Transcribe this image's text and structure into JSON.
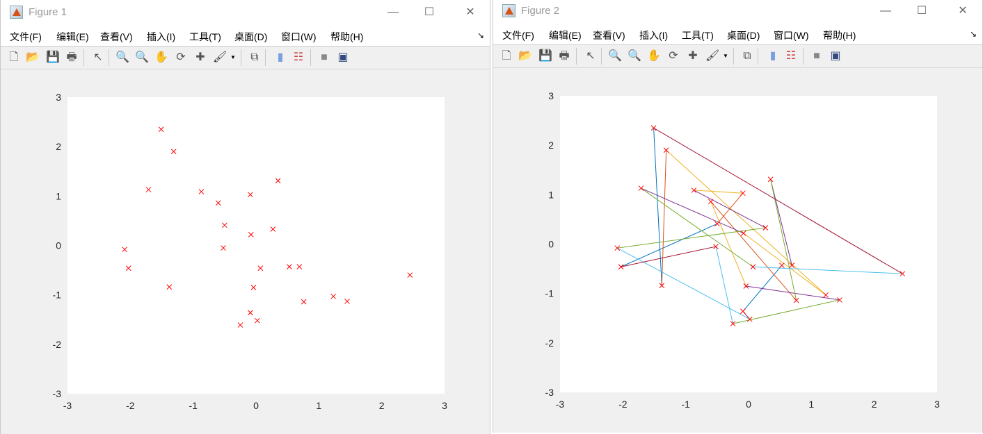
{
  "windows": [
    {
      "title": "Figure 1",
      "menu": [
        "文件(F)",
        "编辑(E)",
        "查看(V)",
        "插入(I)",
        "工具(T)",
        "桌面(D)",
        "窗口(W)",
        "帮助(H)"
      ],
      "toolbar": [
        "new-figure",
        "open-file",
        "save",
        "print",
        "edit-plot-pointer",
        "zoom-in",
        "zoom-out",
        "pan",
        "rotate-3d",
        "data-cursor",
        "brush",
        "link-plot",
        "colorbar",
        "legend",
        "hide-plot-tools",
        "show-plot-tools"
      ],
      "window_controls": {
        "minimize": "—",
        "maximize": "☐",
        "close": "✕"
      }
    },
    {
      "title": "Figure 2",
      "menu": [
        "文件(F)",
        "编辑(E)",
        "查看(V)",
        "插入(I)",
        "工具(T)",
        "桌面(D)",
        "窗口(W)",
        "帮助(H)"
      ],
      "toolbar": [
        "new-figure",
        "open-file",
        "save",
        "print",
        "edit-plot-pointer",
        "zoom-in",
        "zoom-out",
        "pan",
        "rotate-3d",
        "data-cursor",
        "brush",
        "link-plot",
        "colorbar",
        "legend",
        "hide-plot-tools",
        "show-plot-tools"
      ],
      "window_controls": {
        "minimize": "—",
        "maximize": "☐",
        "close": "✕"
      }
    }
  ],
  "chart_data": [
    {
      "type": "scatter",
      "xlim": [
        -3,
        3
      ],
      "ylim": [
        -3,
        3
      ],
      "xticks": [
        "-3",
        "-2",
        "-1",
        "0",
        "1",
        "2",
        "3"
      ],
      "yticks": [
        "-3",
        "-2",
        "-1",
        "0",
        "1",
        "2",
        "3"
      ],
      "grid": false,
      "marker": "x",
      "marker_color": "#ff0000",
      "points": [
        [
          -1.51,
          2.35
        ],
        [
          -1.31,
          1.9
        ],
        [
          -1.71,
          1.13
        ],
        [
          -0.87,
          1.09
        ],
        [
          -0.6,
          0.86
        ],
        [
          -0.09,
          1.03
        ],
        [
          0.35,
          1.31
        ],
        [
          -0.5,
          0.41
        ],
        [
          0.27,
          0.33
        ],
        [
          -0.08,
          0.22
        ],
        [
          -0.52,
          -0.05
        ],
        [
          -2.09,
          -0.08
        ],
        [
          -2.03,
          -0.46
        ],
        [
          -1.38,
          -0.84
        ],
        [
          0.07,
          -0.46
        ],
        [
          0.53,
          -0.43
        ],
        [
          0.69,
          -0.43
        ],
        [
          -0.04,
          -0.85
        ],
        [
          0.76,
          -1.14
        ],
        [
          1.23,
          -1.03
        ],
        [
          1.45,
          -1.13
        ],
        [
          2.45,
          -0.6
        ],
        [
          -0.09,
          -1.36
        ],
        [
          0.02,
          -1.52
        ],
        [
          -0.25,
          -1.61
        ]
      ]
    },
    {
      "type": "line",
      "xlim": [
        -3,
        3
      ],
      "ylim": [
        -3,
        3
      ],
      "xticks": [
        "-3",
        "-2",
        "-1",
        "0",
        "1",
        "2",
        "3"
      ],
      "yticks": [
        "-3",
        "-2",
        "-1",
        "0",
        "1",
        "2",
        "3"
      ],
      "grid": false,
      "marker": "x",
      "marker_color": "#ff0000",
      "points": [
        [
          -1.51,
          2.35
        ],
        [
          -1.31,
          1.9
        ],
        [
          -1.71,
          1.13
        ],
        [
          -0.87,
          1.09
        ],
        [
          -0.6,
          0.86
        ],
        [
          -0.09,
          1.03
        ],
        [
          0.35,
          1.31
        ],
        [
          -0.5,
          0.41
        ],
        [
          0.27,
          0.33
        ],
        [
          -0.08,
          0.22
        ],
        [
          -0.52,
          -0.05
        ],
        [
          -2.09,
          -0.08
        ],
        [
          -2.03,
          -0.46
        ],
        [
          -1.38,
          -0.84
        ],
        [
          0.07,
          -0.46
        ],
        [
          0.53,
          -0.43
        ],
        [
          0.69,
          -0.43
        ],
        [
          -0.04,
          -0.85
        ],
        [
          0.76,
          -1.14
        ],
        [
          1.23,
          -1.03
        ],
        [
          1.45,
          -1.13
        ],
        [
          2.45,
          -0.6
        ],
        [
          -0.09,
          -1.36
        ],
        [
          0.02,
          -1.52
        ],
        [
          -0.25,
          -1.61
        ]
      ],
      "segments": [
        {
          "from": [
            -1.51,
            2.35
          ],
          "to": [
            -1.38,
            -0.84
          ],
          "color": "#0072BD"
        },
        {
          "from": [
            -0.5,
            0.41
          ],
          "to": [
            -2.03,
            -0.46
          ],
          "color": "#0072BD"
        },
        {
          "from": [
            -0.09,
            -1.36
          ],
          "to": [
            0.53,
            -0.43
          ],
          "color": "#0072BD"
        },
        {
          "from": [
            -1.31,
            1.9
          ],
          "to": [
            -1.38,
            -0.84
          ],
          "color": "#D95319"
        },
        {
          "from": [
            -0.09,
            1.03
          ],
          "to": [
            -0.5,
            0.41
          ],
          "color": "#D95319"
        },
        {
          "from": [
            -0.6,
            0.86
          ],
          "to": [
            0.76,
            -1.14
          ],
          "color": "#D95319"
        },
        {
          "from": [
            -1.31,
            1.9
          ],
          "to": [
            1.23,
            -1.03
          ],
          "color": "#EDB120"
        },
        {
          "from": [
            -0.87,
            1.09
          ],
          "to": [
            -0.09,
            1.03
          ],
          "color": "#EDB120"
        },
        {
          "from": [
            -0.6,
            0.86
          ],
          "to": [
            -0.04,
            -0.85
          ],
          "color": "#EDB120"
        },
        {
          "from": [
            -0.08,
            0.22
          ],
          "to": [
            1.23,
            -1.03
          ],
          "color": "#EDB120"
        },
        {
          "from": [
            -1.71,
            1.13
          ],
          "to": [
            -0.08,
            0.22
          ],
          "color": "#7E2F8E"
        },
        {
          "from": [
            -0.87,
            1.09
          ],
          "to": [
            0.27,
            0.33
          ],
          "color": "#7E2F8E"
        },
        {
          "from": [
            0.35,
            1.31
          ],
          "to": [
            0.69,
            -0.43
          ],
          "color": "#7E2F8E"
        },
        {
          "from": [
            -0.04,
            -0.85
          ],
          "to": [
            1.45,
            -1.13
          ],
          "color": "#7E2F8E"
        },
        {
          "from": [
            -1.71,
            1.13
          ],
          "to": [
            0.07,
            -0.46
          ],
          "color": "#77AC30"
        },
        {
          "from": [
            -2.09,
            -0.08
          ],
          "to": [
            0.27,
            0.33
          ],
          "color": "#77AC30"
        },
        {
          "from": [
            0.35,
            1.31
          ],
          "to": [
            0.76,
            -1.14
          ],
          "color": "#77AC30"
        },
        {
          "from": [
            -0.25,
            -1.61
          ],
          "to": [
            1.45,
            -1.13
          ],
          "color": "#77AC30"
        },
        {
          "from": [
            0.07,
            -0.46
          ],
          "to": [
            2.45,
            -0.6
          ],
          "color": "#4DBEEE"
        },
        {
          "from": [
            -2.09,
            -0.08
          ],
          "to": [
            0.02,
            -1.52
          ],
          "color": "#4DBEEE"
        },
        {
          "from": [
            -0.52,
            -0.05
          ],
          "to": [
            -0.25,
            -1.61
          ],
          "color": "#4DBEEE"
        },
        {
          "from": [
            -1.51,
            2.35
          ],
          "to": [
            2.45,
            -0.6
          ],
          "color": "#A2142F"
        },
        {
          "from": [
            -2.03,
            -0.46
          ],
          "to": [
            -0.52,
            -0.05
          ],
          "color": "#A2142F"
        },
        {
          "from": [
            -0.09,
            -1.36
          ],
          "to": [
            0.02,
            -1.52
          ],
          "color": "#A2142F"
        }
      ]
    }
  ]
}
